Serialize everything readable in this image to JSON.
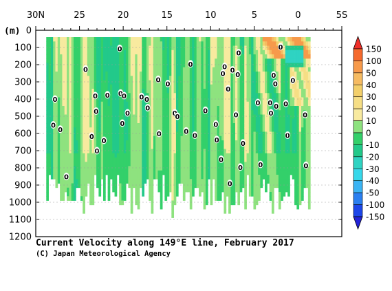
{
  "chart_data": {
    "type": "heatmap",
    "title": "Current Velocity along 149°E line, February 2017",
    "credit": "(C) Japan Meteorological Agency",
    "ylabel": "(m)",
    "x_axis": {
      "ticks": [
        30,
        25,
        20,
        15,
        10,
        5,
        0,
        -5
      ],
      "tick_labels": [
        "30N",
        "25",
        "20",
        "15",
        "10",
        "5",
        "0",
        "5S"
      ],
      "range": [
        30,
        -5
      ]
    },
    "y_axis": {
      "ticks": [
        0,
        100,
        200,
        300,
        400,
        500,
        600,
        700,
        800,
        900,
        1000,
        1100,
        1200
      ],
      "tick_labels": [
        "0",
        "100",
        "200",
        "300",
        "400",
        "500",
        "600",
        "700",
        "800",
        "900",
        "1000",
        "1100",
        "1200"
      ],
      "range": [
        0,
        1200
      ],
      "inverted": true
    },
    "colorbar": {
      "levels": [
        "150",
        "100",
        "50",
        "40",
        "30",
        "20",
        "10",
        "0",
        "-10",
        "-20",
        "-30",
        "-40",
        "-50",
        "-100",
        "-150"
      ],
      "colors": [
        "#f0302a",
        "#f56a2e",
        "#f79a4b",
        "#f6bb62",
        "#f3cf6a",
        "#f6de85",
        "#f8ea9f",
        "#8ee27f",
        "#33d06a",
        "#22c98a",
        "#2fd3c2",
        "#37d8ea",
        "#3bb4f4",
        "#2a7ff0",
        "#1c46e8",
        "#2323d8"
      ]
    },
    "data_extent": {
      "lat_from": 28.8,
      "lat_to": -1.4,
      "depth_top": 40,
      "depth_bottom": 1100
    },
    "zero_contour_label": "0",
    "zero_contour_labels": [
      {
        "lat": 28.0,
        "depth": 550
      },
      {
        "lat": 27.8,
        "depth": 400
      },
      {
        "lat": 27.2,
        "depth": 575
      },
      {
        "lat": 26.5,
        "depth": 850
      },
      {
        "lat": 24.3,
        "depth": 225
      },
      {
        "lat": 23.6,
        "depth": 615
      },
      {
        "lat": 23.2,
        "depth": 380
      },
      {
        "lat": 23.1,
        "depth": 470
      },
      {
        "lat": 23.0,
        "depth": 700
      },
      {
        "lat": 22.2,
        "depth": 640
      },
      {
        "lat": 21.8,
        "depth": 375
      },
      {
        "lat": 20.4,
        "depth": 105
      },
      {
        "lat": 20.3,
        "depth": 365
      },
      {
        "lat": 20.1,
        "depth": 540
      },
      {
        "lat": 19.9,
        "depth": 380
      },
      {
        "lat": 19.5,
        "depth": 480
      },
      {
        "lat": 17.9,
        "depth": 385
      },
      {
        "lat": 17.3,
        "depth": 400
      },
      {
        "lat": 17.2,
        "depth": 450
      },
      {
        "lat": 16.0,
        "depth": 285
      },
      {
        "lat": 15.9,
        "depth": 600
      },
      {
        "lat": 14.9,
        "depth": 310
      },
      {
        "lat": 14.1,
        "depth": 480
      },
      {
        "lat": 13.8,
        "depth": 500
      },
      {
        "lat": 12.8,
        "depth": 585
      },
      {
        "lat": 12.3,
        "depth": 195
      },
      {
        "lat": 11.8,
        "depth": 610
      },
      {
        "lat": 10.6,
        "depth": 465
      },
      {
        "lat": 9.4,
        "depth": 545
      },
      {
        "lat": 9.3,
        "depth": 635
      },
      {
        "lat": 8.8,
        "depth": 750
      },
      {
        "lat": 8.6,
        "depth": 250
      },
      {
        "lat": 8.4,
        "depth": 210
      },
      {
        "lat": 8.0,
        "depth": 340
      },
      {
        "lat": 7.8,
        "depth": 890
      },
      {
        "lat": 7.5,
        "depth": 230
      },
      {
        "lat": 7.1,
        "depth": 490
      },
      {
        "lat": 6.9,
        "depth": 255
      },
      {
        "lat": 6.8,
        "depth": 130
      },
      {
        "lat": 6.6,
        "depth": 795
      },
      {
        "lat": 6.3,
        "depth": 655
      },
      {
        "lat": 4.6,
        "depth": 420
      },
      {
        "lat": 4.3,
        "depth": 780
      },
      {
        "lat": 3.2,
        "depth": 420
      },
      {
        "lat": 3.1,
        "depth": 480
      },
      {
        "lat": 2.8,
        "depth": 260
      },
      {
        "lat": 2.6,
        "depth": 310
      },
      {
        "lat": 2.5,
        "depth": 440
      },
      {
        "lat": 2.0,
        "depth": 95
      },
      {
        "lat": 1.4,
        "depth": 425
      },
      {
        "lat": 1.2,
        "depth": 610
      },
      {
        "lat": 0.6,
        "depth": 290
      },
      {
        "lat": -0.8,
        "depth": 490
      },
      {
        "lat": -0.9,
        "depth": 785
      }
    ]
  }
}
